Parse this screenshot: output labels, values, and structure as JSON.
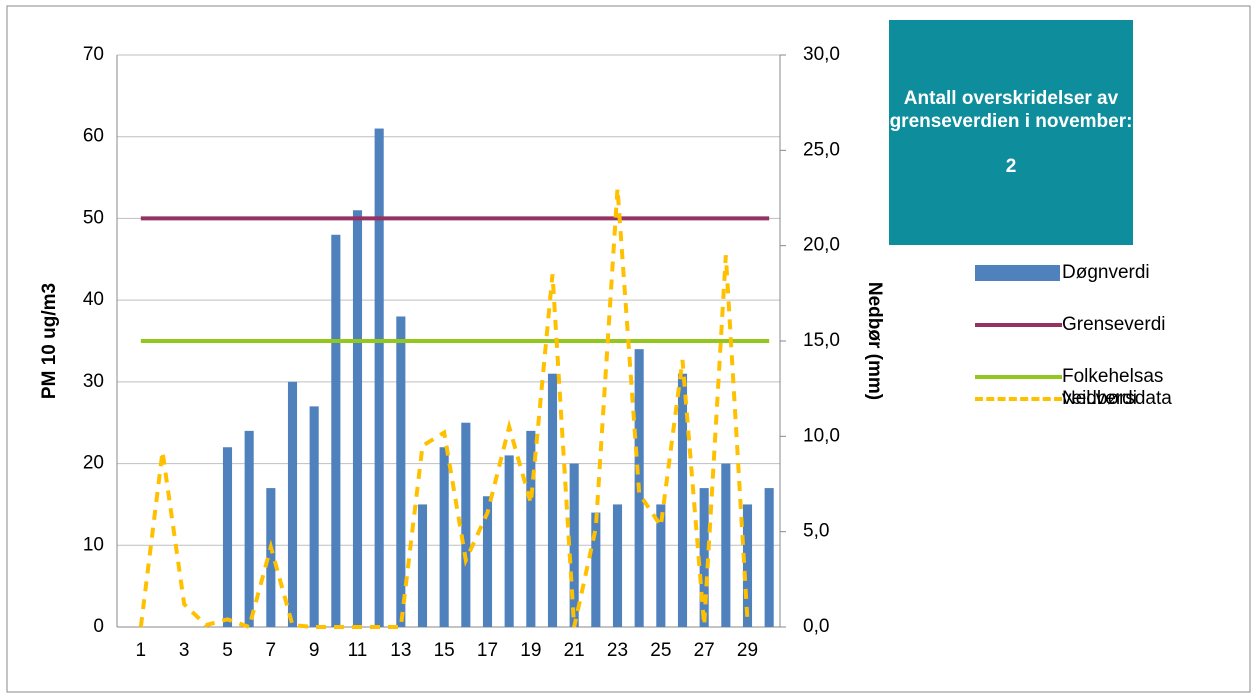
{
  "chart_data": {
    "type": "bar",
    "y_label": "PM 10 ug/m3",
    "y2_label": "Nedbør (mm)",
    "categories": [
      "1",
      null,
      "3",
      null,
      "5",
      null,
      "7",
      null,
      "9",
      null,
      "11",
      null,
      "13",
      null,
      "15",
      null,
      "17",
      null,
      "19",
      null,
      "21",
      null,
      "23",
      null,
      "25",
      null,
      "27",
      null,
      "29",
      null
    ],
    "series": [
      {
        "name": "Døgnverdi",
        "type": "bar",
        "color": "#4F81BD",
        "values": [
          null,
          null,
          null,
          null,
          22,
          24,
          17,
          30,
          27,
          48,
          51,
          61,
          38,
          15,
          22,
          25,
          16,
          21,
          24,
          31,
          20,
          14,
          15,
          34,
          15,
          31,
          17,
          20,
          15,
          17
        ]
      },
      {
        "name": "Grenseverdi",
        "type": "line",
        "color": "#953163",
        "values": [
          50,
          50,
          50,
          50,
          50,
          50,
          50,
          50,
          50,
          50,
          50,
          50,
          50,
          50,
          50,
          50,
          50,
          50,
          50,
          50,
          50,
          50,
          50,
          50,
          50,
          50,
          50,
          50,
          50,
          50
        ]
      },
      {
        "name": "Folkehelsas veil.verdi",
        "type": "line",
        "color": "#92C81E",
        "values": [
          35,
          35,
          35,
          35,
          35,
          35,
          35,
          35,
          35,
          35,
          35,
          35,
          35,
          35,
          35,
          35,
          35,
          35,
          35,
          35,
          35,
          35,
          35,
          35,
          35,
          35,
          35,
          35,
          35,
          35
        ]
      },
      {
        "name": "Nedbørsdata",
        "type": "line",
        "axis": "y2",
        "dashed": true,
        "color": "#FFC000",
        "values": [
          0,
          9.2,
          1.2,
          0.1,
          0.4,
          0,
          4.2,
          0.1,
          0,
          0,
          0,
          0,
          0,
          9.5,
          10.2,
          3.5,
          6,
          10.5,
          6.5,
          18.5,
          0,
          5.2,
          23,
          7,
          5.3,
          14,
          0.1,
          19.5,
          0.3,
          null
        ]
      }
    ],
    "ylim": [
      0,
      70
    ],
    "yticks": [
      0,
      10,
      20,
      30,
      40,
      50,
      60,
      70
    ],
    "y2lim": [
      0,
      30
    ],
    "y2ticks": [
      {
        "value": 0,
        "label": "0,0"
      },
      {
        "value": 5,
        "label": "5,0"
      },
      {
        "value": 10,
        "label": "10,0"
      },
      {
        "value": 15,
        "label": "15,0"
      },
      {
        "value": 20,
        "label": "20,0"
      },
      {
        "value": 25,
        "label": "25,0"
      },
      {
        "value": 30,
        "label": "30,0"
      }
    ],
    "grid": true,
    "legend": "right",
    "annotation": {
      "text": "Antall overskridelser av grenseverdien i november:",
      "value": 2
    }
  }
}
